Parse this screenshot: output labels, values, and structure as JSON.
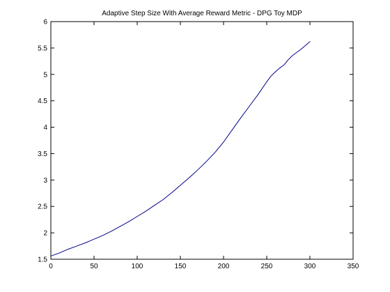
{
  "chart_data": {
    "type": "line",
    "title": "Adaptive Step Size With Average Reward Metric - DPG Toy MDP",
    "xlabel": "",
    "ylabel": "",
    "xlim": [
      0,
      350
    ],
    "ylim": [
      1.5,
      6
    ],
    "xticks": [
      0,
      50,
      100,
      150,
      200,
      250,
      300,
      350
    ],
    "yticks": [
      1.5,
      2,
      2.5,
      3,
      3.5,
      4,
      4.5,
      5,
      5.5,
      6
    ],
    "xtick_labels": [
      "0",
      "50",
      "100",
      "150",
      "200",
      "250",
      "300",
      "350"
    ],
    "ytick_labels": [
      "1.5",
      "2",
      "2.5",
      "3",
      "3.5",
      "4",
      "4.5",
      "5",
      "5.5",
      "6"
    ],
    "grid": false,
    "legend": "none",
    "series": [
      {
        "color": "#00008b",
        "x": [
          0,
          10,
          20,
          30,
          40,
          50,
          60,
          70,
          80,
          90,
          100,
          110,
          120,
          130,
          140,
          150,
          160,
          170,
          180,
          190,
          200,
          210,
          220,
          230,
          240,
          250,
          255,
          260,
          265,
          270,
          275,
          280,
          290,
          300
        ],
        "values": [
          1.56,
          1.62,
          1.69,
          1.75,
          1.81,
          1.88,
          1.95,
          2.03,
          2.12,
          2.21,
          2.31,
          2.41,
          2.52,
          2.63,
          2.76,
          2.9,
          3.04,
          3.19,
          3.35,
          3.52,
          3.72,
          3.95,
          4.18,
          4.4,
          4.62,
          4.86,
          4.97,
          5.05,
          5.12,
          5.18,
          5.28,
          5.36,
          5.48,
          5.62
        ]
      }
    ]
  }
}
